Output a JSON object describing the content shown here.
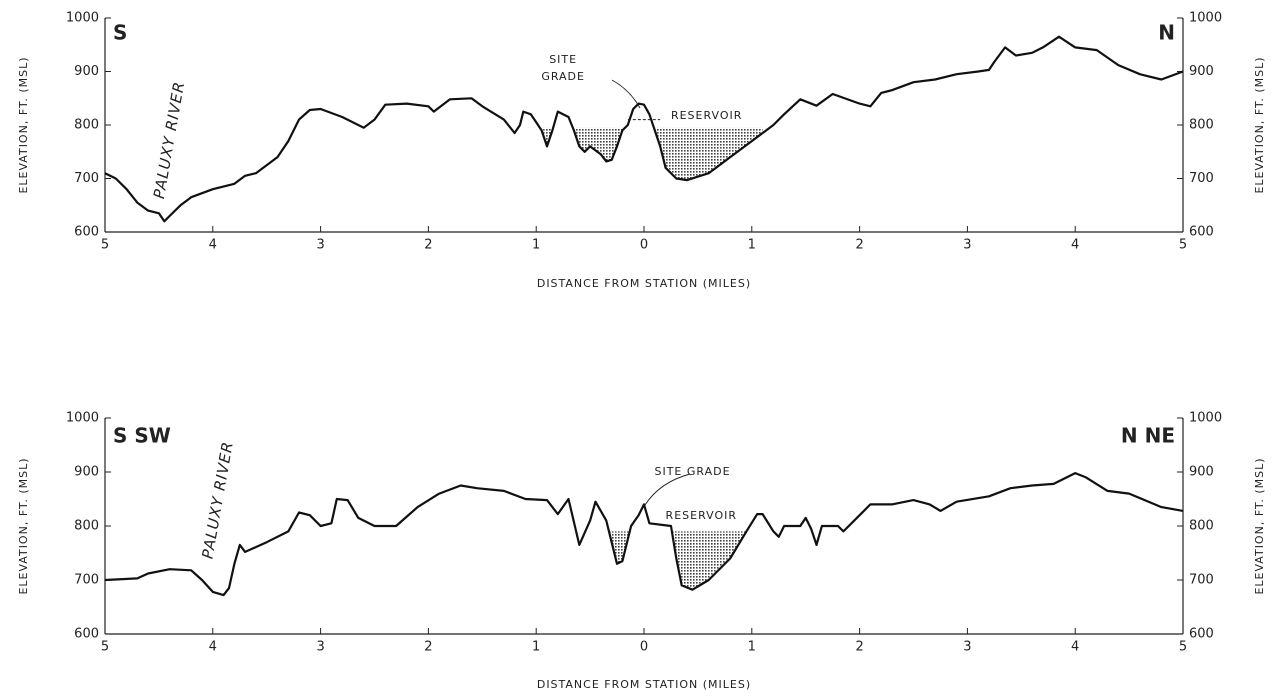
{
  "chart_data": [
    {
      "type": "line",
      "xlabel": "DISTANCE FROM STATION (MILES)",
      "ylabel": "ELEVATION, FT. (MSL)",
      "y2label": "ELEVATION, FT. (MSL)",
      "direction_left": "S",
      "direction_right": "N",
      "river_label": "PALUXY RIVER",
      "site_grade_label": [
        "SITE",
        "GRADE"
      ],
      "reservoir_label": "RESERVOIR",
      "reservoir_level": 795,
      "reservoir_x": [
        -0.95,
        1.1
      ],
      "color": "#111111",
      "xlim": [
        -5,
        5
      ],
      "xticks": [
        {
          "value": -5,
          "label": "5"
        },
        {
          "value": -4,
          "label": "4"
        },
        {
          "value": -3,
          "label": "3"
        },
        {
          "value": -2,
          "label": "2"
        },
        {
          "value": -1,
          "label": "1"
        },
        0,
        1,
        2,
        3,
        4,
        5
      ],
      "ylim": [
        600,
        1000
      ],
      "yticks": [
        600,
        700,
        800,
        900,
        1000
      ],
      "y2lim": [
        600,
        1000
      ],
      "y2ticks": [
        600,
        700,
        800,
        900,
        1000
      ],
      "x": [
        -5,
        -4.9,
        -4.8,
        -4.7,
        -4.6,
        -4.5,
        -4.45,
        -4.4,
        -4.3,
        -4.2,
        -4.0,
        -3.8,
        -3.7,
        -3.6,
        -3.4,
        -3.3,
        -3.2,
        -3.1,
        -3.0,
        -2.8,
        -2.6,
        -2.5,
        -2.4,
        -2.2,
        -2.0,
        -1.95,
        -1.8,
        -1.6,
        -1.5,
        -1.3,
        -1.2,
        -1.15,
        -1.12,
        -1.05,
        -1.0,
        -0.95,
        -0.9,
        -0.85,
        -0.8,
        -0.7,
        -0.65,
        -0.6,
        -0.55,
        -0.5,
        -0.4,
        -0.35,
        -0.3,
        -0.25,
        -0.2,
        -0.15,
        -0.1,
        -0.05,
        0,
        0.05,
        0.1,
        0.15,
        0.2,
        0.3,
        0.4,
        0.6,
        0.8,
        1.0,
        1.2,
        1.3,
        1.45,
        1.6,
        1.75,
        2.0,
        2.1,
        2.2,
        2.3,
        2.5,
        2.7,
        2.9,
        3.1,
        3.2,
        3.25,
        3.35,
        3.45,
        3.6,
        3.7,
        3.85,
        4.0,
        4.2,
        4.4,
        4.6,
        4.8,
        5.0
      ],
      "values": [
        710,
        700,
        680,
        655,
        640,
        635,
        620,
        630,
        650,
        665,
        680,
        690,
        705,
        710,
        740,
        770,
        810,
        828,
        830,
        815,
        795,
        810,
        838,
        840,
        835,
        825,
        848,
        850,
        835,
        810,
        785,
        800,
        825,
        820,
        805,
        790,
        760,
        790,
        825,
        815,
        790,
        760,
        750,
        760,
        745,
        732,
        735,
        760,
        790,
        800,
        830,
        840,
        838,
        820,
        790,
        760,
        720,
        700,
        697,
        710,
        740,
        770,
        800,
        820,
        848,
        836,
        858,
        840,
        835,
        860,
        865,
        880,
        885,
        895,
        900,
        903,
        918,
        945,
        930,
        935,
        945,
        965,
        945,
        940,
        912,
        895,
        885,
        900
      ]
    },
    {
      "type": "line",
      "xlabel": "DISTANCE FROM STATION (MILES)",
      "ylabel": "ELEVATION, FT. (MSL)",
      "y2label": "ELEVATION, FT. (MSL)",
      "direction_left": "S SW",
      "direction_right": "N NE",
      "river_label": "PALUXY RIVER",
      "site_grade_label": [
        "SITE GRADE"
      ],
      "reservoir_label": "RESERVOIR",
      "reservoir_level": 790,
      "reservoir_x": [
        -0.35,
        0.95
      ],
      "color": "#111111",
      "xlim": [
        -5,
        5
      ],
      "xticks": [
        {
          "value": -5,
          "label": "5"
        },
        {
          "value": -4,
          "label": "4"
        },
        {
          "value": -3,
          "label": "3"
        },
        {
          "value": -2,
          "label": "2"
        },
        {
          "value": -1,
          "label": "1"
        },
        0,
        1,
        2,
        3,
        4,
        5
      ],
      "ylim": [
        600,
        1000
      ],
      "yticks": [
        600,
        700,
        800,
        900,
        1000
      ],
      "y2lim": [
        600,
        1000
      ],
      "y2ticks": [
        600,
        700,
        800,
        900,
        1000
      ],
      "x": [
        -5,
        -4.7,
        -4.6,
        -4.4,
        -4.2,
        -4.1,
        -4.0,
        -3.9,
        -3.85,
        -3.8,
        -3.75,
        -3.7,
        -3.5,
        -3.3,
        -3.2,
        -3.1,
        -3.0,
        -2.9,
        -2.85,
        -2.75,
        -2.65,
        -2.5,
        -2.3,
        -2.1,
        -1.9,
        -1.7,
        -1.55,
        -1.3,
        -1.1,
        -0.9,
        -0.8,
        -0.7,
        -0.6,
        -0.5,
        -0.45,
        -0.35,
        -0.25,
        -0.2,
        -0.12,
        -0.05,
        0,
        0.05,
        0.25,
        0.3,
        0.35,
        0.45,
        0.6,
        0.8,
        0.95,
        1.05,
        1.1,
        1.2,
        1.25,
        1.3,
        1.45,
        1.5,
        1.55,
        1.6,
        1.65,
        1.8,
        1.85,
        2.0,
        2.1,
        2.3,
        2.5,
        2.65,
        2.75,
        2.9,
        3.2,
        3.4,
        3.6,
        3.8,
        4.0,
        4.1,
        4.3,
        4.5,
        4.8,
        5.0
      ],
      "values": [
        700,
        703,
        712,
        720,
        718,
        700,
        678,
        672,
        685,
        730,
        765,
        752,
        770,
        790,
        825,
        820,
        800,
        805,
        850,
        848,
        815,
        800,
        800,
        835,
        860,
        875,
        870,
        865,
        850,
        848,
        822,
        850,
        765,
        810,
        845,
        810,
        730,
        735,
        800,
        820,
        840,
        805,
        800,
        740,
        690,
        682,
        700,
        740,
        790,
        822,
        822,
        790,
        780,
        800,
        800,
        815,
        795,
        765,
        800,
        800,
        790,
        820,
        840,
        840,
        848,
        840,
        828,
        845,
        855,
        870,
        875,
        878,
        898,
        890,
        865,
        860,
        835,
        828
      ]
    }
  ]
}
